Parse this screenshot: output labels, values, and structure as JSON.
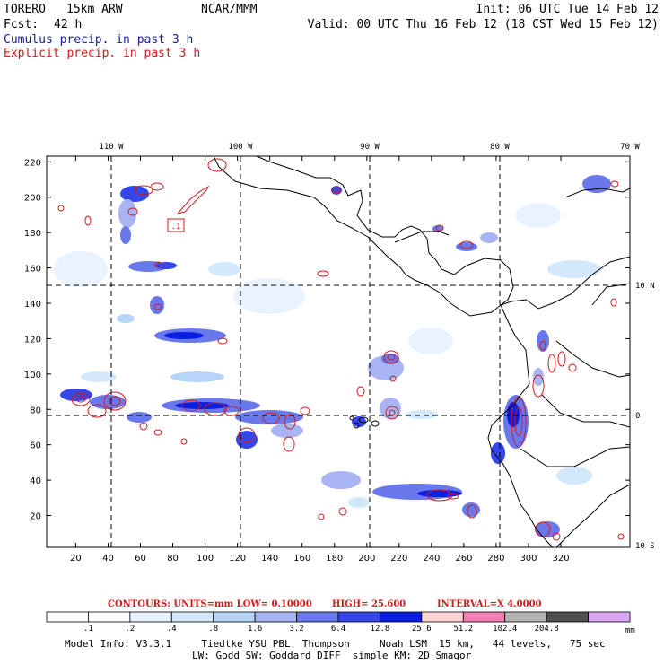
{
  "header": {
    "model": "TORERO",
    "resolution": "15km ARW",
    "org": "NCAR/MMM",
    "init": "Init: 06 UTC Tue 14 Feb 12",
    "fcst_label": "Fcst:",
    "fcst_value": "42 h",
    "valid": "Valid: 00 UTC Thu 16 Feb 12 (18 CST Wed 15 Feb 12)",
    "cumulus": "Cumulus precip. in past 3 h",
    "explicit": "Explicit precip. in past 3 h"
  },
  "colors": {
    "cumulus_text": "#1a1a9a",
    "explicit_text": "#d21a1a",
    "contour": "#d21a1a"
  },
  "map": {
    "x_ticks": [
      "20",
      "40",
      "60",
      "80",
      "100",
      "120",
      "140",
      "160",
      "180",
      "200",
      "220",
      "240",
      "260",
      "280",
      "300",
      "320"
    ],
    "y_ticks": [
      "20",
      "40",
      "60",
      "80",
      "100",
      "120",
      "140",
      "160",
      "180",
      "200",
      "220"
    ],
    "lon_labels": [
      "110 W",
      "100 W",
      "90 W",
      "80 W",
      "70 W"
    ],
    "lat_labels": [
      "10 N",
      "0",
      "10 S"
    ],
    "box_label": ".1"
  },
  "contour_info": {
    "units": "CONTOURS:  UNITS=mm  LOW= 0.10000",
    "high": "HIGH=  25.600",
    "interval": "INTERVAL=X  4.0000"
  },
  "colorbar": {
    "labels": [
      ".1",
      ".2",
      ".4",
      ".8",
      "1.6",
      "3.2",
      "6.4",
      "12.8",
      "25.6",
      "51.2",
      "102.4",
      "204.8"
    ],
    "unit": "mm",
    "colors": [
      "#ffffff",
      "#ffffff",
      "#e8f3ff",
      "#d4e8fb",
      "#b7d6f7",
      "#a8b4f4",
      "#6a78ee",
      "#3547ea",
      "#0a1ee6",
      "#fcd4d6",
      "#f17eb2",
      "#b4b4b4",
      "#505050",
      "#d8a6f2"
    ]
  },
  "footer": {
    "line1": "Model Info: V3.3.1     Tiedtke YSU PBL  Thompson     Noah LSM  15 km,   44 levels,   75 sec",
    "line2": "LW: Godd SW: Goddard DIFF  simple KM: 2D Smagor"
  }
}
